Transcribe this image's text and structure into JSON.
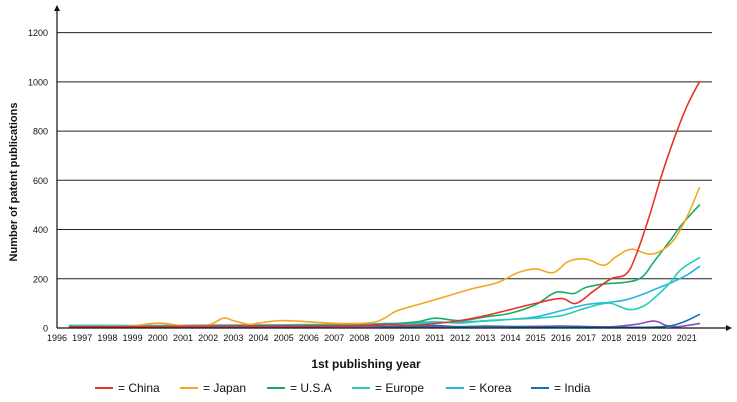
{
  "chart_data": {
    "type": "line",
    "title": "",
    "xlabel": "1st publishing year",
    "ylabel": "Number of patent publications",
    "xlim": [
      1996,
      2022
    ],
    "ylim": [
      0,
      1300
    ],
    "x_ticks": [
      "1996",
      "1997",
      "1998",
      "1999",
      "2000",
      "2001",
      "2002",
      "2003",
      "2004",
      "2005",
      "2006",
      "2007",
      "2008",
      "2009",
      "2010",
      "2011",
      "2012",
      "2013",
      "2014",
      "2015",
      "2016",
      "2017",
      "2018",
      "2019",
      "2020",
      "2021"
    ],
    "y_ticks": [
      "0",
      "200",
      "400",
      "600",
      "800",
      "1000",
      "1200"
    ],
    "grid": "horizontal",
    "legend_position": "bottom",
    "series": [
      {
        "name": "= China",
        "color": "#e8312a",
        "points": [
          [
            1996.5,
            5
          ],
          [
            1998,
            5
          ],
          [
            2000,
            6
          ],
          [
            2002,
            8
          ],
          [
            2004,
            8
          ],
          [
            2006,
            8
          ],
          [
            2008,
            9
          ],
          [
            2009,
            15
          ],
          [
            2010,
            10
          ],
          [
            2011,
            18
          ],
          [
            2012,
            30
          ],
          [
            2013,
            50
          ],
          [
            2014,
            75
          ],
          [
            2015,
            100
          ],
          [
            2016,
            120
          ],
          [
            2016.6,
            100
          ],
          [
            2017.3,
            150
          ],
          [
            2018,
            200
          ],
          [
            2018.6,
            220
          ],
          [
            2019,
            300
          ],
          [
            2019.5,
            450
          ],
          [
            2020,
            620
          ],
          [
            2020.5,
            770
          ],
          [
            2021,
            900
          ],
          [
            2021.5,
            1000
          ]
        ]
      },
      {
        "name": "= Japan",
        "color": "#f5a623",
        "points": [
          [
            1996.5,
            5
          ],
          [
            1998,
            6
          ],
          [
            1999,
            8
          ],
          [
            2000,
            20
          ],
          [
            2001,
            10
          ],
          [
            2002,
            12
          ],
          [
            2002.6,
            40
          ],
          [
            2003,
            30
          ],
          [
            2003.6,
            15
          ],
          [
            2004,
            20
          ],
          [
            2004.8,
            30
          ],
          [
            2005.5,
            28
          ],
          [
            2006.5,
            22
          ],
          [
            2007.5,
            18
          ],
          [
            2008.5,
            22
          ],
          [
            2009,
            40
          ],
          [
            2009.5,
            70
          ],
          [
            2010.5,
            100
          ],
          [
            2011.5,
            130
          ],
          [
            2012.5,
            160
          ],
          [
            2013.5,
            185
          ],
          [
            2014.3,
            225
          ],
          [
            2015,
            240
          ],
          [
            2015.7,
            225
          ],
          [
            2016.3,
            270
          ],
          [
            2017,
            280
          ],
          [
            2017.7,
            255
          ],
          [
            2018.2,
            290
          ],
          [
            2018.8,
            320
          ],
          [
            2019.5,
            300
          ],
          [
            2020,
            315
          ],
          [
            2020.5,
            360
          ],
          [
            2021,
            450
          ],
          [
            2021.5,
            570
          ]
        ]
      },
      {
        "name": "= U.S.A",
        "color": "#1aab63",
        "points": [
          [
            1996.5,
            5
          ],
          [
            1998,
            5
          ],
          [
            2000,
            6
          ],
          [
            2002,
            8
          ],
          [
            2004,
            9
          ],
          [
            2006,
            10
          ],
          [
            2008,
            12
          ],
          [
            2009,
            15
          ],
          [
            2010.3,
            25
          ],
          [
            2011,
            40
          ],
          [
            2012,
            30
          ],
          [
            2013,
            45
          ],
          [
            2014,
            60
          ],
          [
            2015,
            95
          ],
          [
            2015.8,
            145
          ],
          [
            2016.5,
            140
          ],
          [
            2017,
            165
          ],
          [
            2017.8,
            180
          ],
          [
            2018.5,
            185
          ],
          [
            2019.2,
            205
          ],
          [
            2019.7,
            270
          ],
          [
            2020.3,
            350
          ],
          [
            2020.8,
            420
          ],
          [
            2021.5,
            500
          ]
        ]
      },
      {
        "name": "= Europe",
        "color": "#26cdb5",
        "points": [
          [
            1996.5,
            8
          ],
          [
            1998,
            8
          ],
          [
            2000,
            10
          ],
          [
            2002,
            10
          ],
          [
            2004,
            12
          ],
          [
            2006,
            12
          ],
          [
            2008,
            15
          ],
          [
            2009,
            18
          ],
          [
            2010,
            20
          ],
          [
            2011,
            25
          ],
          [
            2012,
            20
          ],
          [
            2013,
            30
          ],
          [
            2014,
            35
          ],
          [
            2015,
            40
          ],
          [
            2016,
            50
          ],
          [
            2016.8,
            75
          ],
          [
            2017.5,
            95
          ],
          [
            2018,
            100
          ],
          [
            2018.7,
            75
          ],
          [
            2019.3,
            90
          ],
          [
            2019.8,
            130
          ],
          [
            2020.3,
            180
          ],
          [
            2020.8,
            240
          ],
          [
            2021.5,
            285
          ]
        ]
      },
      {
        "name": "= Korea",
        "color": "#27b5e8",
        "points": [
          [
            1996.5,
            10
          ],
          [
            1998,
            10
          ],
          [
            2000,
            10
          ],
          [
            2002,
            12
          ],
          [
            2004,
            12
          ],
          [
            2006,
            14
          ],
          [
            2008,
            15
          ],
          [
            2009,
            18
          ],
          [
            2010,
            15
          ],
          [
            2011,
            20
          ],
          [
            2012,
            25
          ],
          [
            2013,
            28
          ],
          [
            2014,
            35
          ],
          [
            2015,
            45
          ],
          [
            2016,
            70
          ],
          [
            2017,
            95
          ],
          [
            2018,
            105
          ],
          [
            2018.6,
            115
          ],
          [
            2019.2,
            135
          ],
          [
            2019.8,
            160
          ],
          [
            2020.4,
            185
          ],
          [
            2021,
            215
          ],
          [
            2021.5,
            250
          ]
        ]
      },
      {
        "name": "= India",
        "color": "#1a6fb0",
        "points": [
          [
            1996.5,
            10
          ],
          [
            1998,
            10
          ],
          [
            2000,
            8
          ],
          [
            2002,
            10
          ],
          [
            2004,
            12
          ],
          [
            2006,
            10
          ],
          [
            2008,
            15
          ],
          [
            2009,
            8
          ],
          [
            2010,
            5
          ],
          [
            2011,
            10
          ],
          [
            2012,
            5
          ],
          [
            2013,
            8
          ],
          [
            2014,
            6
          ],
          [
            2015,
            5
          ],
          [
            2016,
            6
          ],
          [
            2017,
            5
          ],
          [
            2018,
            4
          ],
          [
            2019,
            3
          ],
          [
            2020,
            5
          ],
          [
            2020.5,
            12
          ],
          [
            2021,
            30
          ],
          [
            2021.5,
            55
          ]
        ]
      },
      {
        "name": "",
        "color": "#8a4cc2",
        "points": [
          [
            1996.5,
            2
          ],
          [
            1998,
            3
          ],
          [
            2000,
            3
          ],
          [
            2002,
            4
          ],
          [
            2004,
            4
          ],
          [
            2006,
            5
          ],
          [
            2008,
            6
          ],
          [
            2010,
            5
          ],
          [
            2012,
            6
          ],
          [
            2014,
            6
          ],
          [
            2016,
            8
          ],
          [
            2017,
            6
          ],
          [
            2018,
            5
          ],
          [
            2019,
            15
          ],
          [
            2019.7,
            28
          ],
          [
            2020.2,
            10
          ],
          [
            2020.6,
            5
          ],
          [
            2021,
            10
          ],
          [
            2021.5,
            18
          ]
        ]
      }
    ],
    "legend": [
      "= China",
      "= Japan",
      "= U.S.A",
      "= Europe",
      "= Korea",
      "= India"
    ]
  }
}
